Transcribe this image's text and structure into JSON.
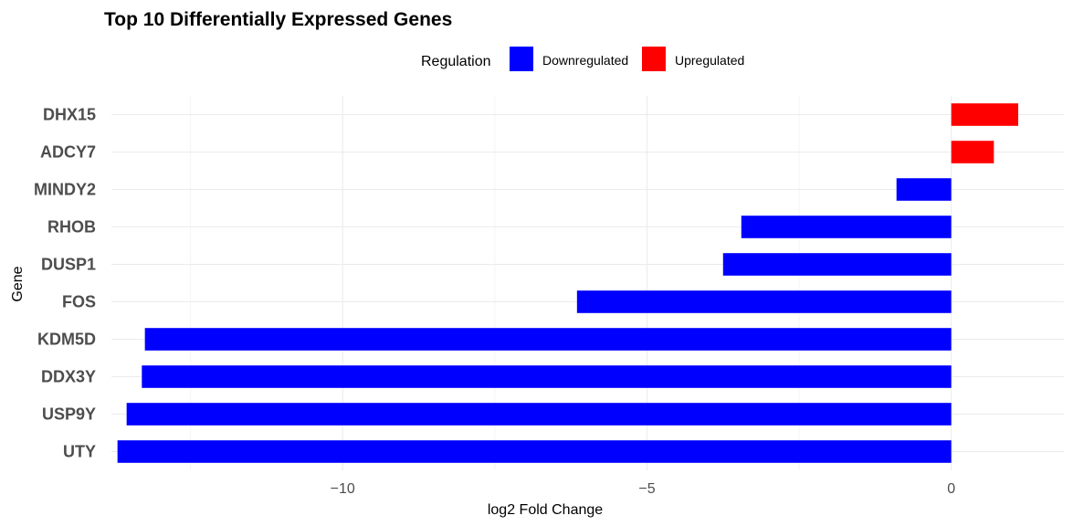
{
  "chart_data": {
    "type": "bar",
    "orientation": "horizontal",
    "title": "Top 10 Differentially Expressed Genes",
    "xlabel": "log2 Fold Change",
    "ylabel": "Gene",
    "xlim": [
      -13.8,
      1.85
    ],
    "xticks": [
      -10,
      -5,
      0
    ],
    "grid": true,
    "legend": {
      "title": "Regulation",
      "placement": "top",
      "entries": [
        {
          "label": "Downregulated",
          "color": "#0000ff"
        },
        {
          "label": "Upregulated",
          "color": "#ff0000"
        }
      ]
    },
    "categories": [
      "DHX15",
      "ADCY7",
      "MINDY2",
      "RHOB",
      "DUSP1",
      "FOS",
      "KDM5D",
      "DDX3Y",
      "USP9Y",
      "UTY"
    ],
    "values": [
      1.1,
      0.7,
      -0.9,
      -3.45,
      -3.75,
      -6.15,
      -13.25,
      -13.3,
      -13.55,
      -13.7
    ],
    "regulation": [
      "Upregulated",
      "Upregulated",
      "Downregulated",
      "Downregulated",
      "Downregulated",
      "Downregulated",
      "Downregulated",
      "Downregulated",
      "Downregulated",
      "Downregulated"
    ]
  }
}
